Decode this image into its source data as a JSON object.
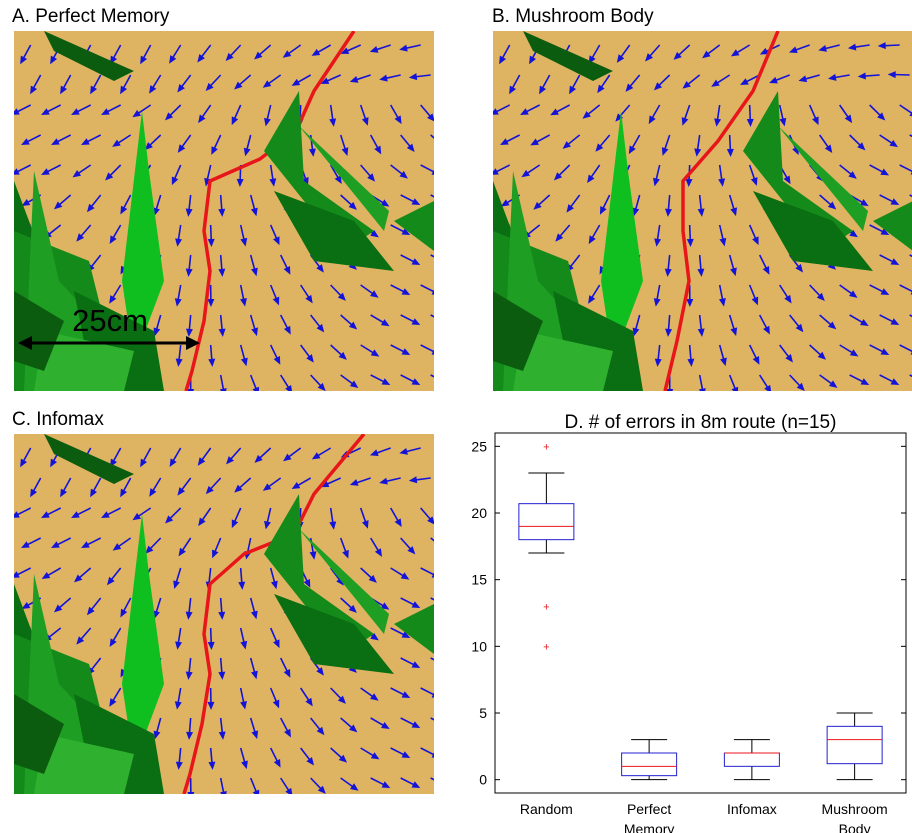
{
  "panels": [
    {
      "id": "A",
      "title": "A. Perfect Memory",
      "scale_label": "25cm",
      "route_color": "#e8161b"
    },
    {
      "id": "B",
      "title": "B. Mushroom Body",
      "scale_label": "",
      "route_color": "#e8161b"
    },
    {
      "id": "C",
      "title": "C. Infomax",
      "scale_label": "",
      "route_color": "#e8161b"
    }
  ],
  "colors": {
    "ground": "#deb462",
    "arrow": "#1414d8",
    "route": "#e8161b",
    "grass": [
      "#0a6e12",
      "#138a1a",
      "#1f9e24",
      "#2fb12f",
      "#0fbf1f",
      "#0c5c10"
    ],
    "box": "#2020d0",
    "median": "#e8161b",
    "whisker": "#000000",
    "outlier": "#e8161b"
  },
  "chart_data": {
    "type": "box",
    "title": "D. # of errors in 8m route (n=15)",
    "xlabel": "",
    "ylabel": "",
    "categories": [
      "Random",
      "Perfect Memory",
      "Infomax",
      "Mushroom Body"
    ],
    "category_lines": [
      [
        "Random"
      ],
      [
        "Perfect",
        "Memory"
      ],
      [
        "Infomax"
      ],
      [
        "Mushroom",
        "Body"
      ]
    ],
    "ylim": [
      -1,
      26
    ],
    "yticks": [
      0,
      5,
      10,
      15,
      20,
      25
    ],
    "boxes": [
      {
        "name": "Random",
        "whisker_low": 17,
        "q1": 18,
        "median": 19,
        "q3": 20.7,
        "whisker_high": 23,
        "outliers": [
          25,
          13,
          10
        ]
      },
      {
        "name": "Perfect Memory",
        "whisker_low": 0,
        "q1": 0.3,
        "median": 1,
        "q3": 2,
        "whisker_high": 3,
        "outliers": []
      },
      {
        "name": "Infomax",
        "whisker_low": 0,
        "q1": 1,
        "median": 2,
        "q3": 2,
        "whisker_high": 3,
        "outliers": []
      },
      {
        "name": "Mushroom Body",
        "whisker_low": 0,
        "q1": 1.2,
        "median": 3,
        "q3": 4,
        "whisker_high": 5,
        "outliers": []
      }
    ],
    "grid": false,
    "legend": "none"
  }
}
